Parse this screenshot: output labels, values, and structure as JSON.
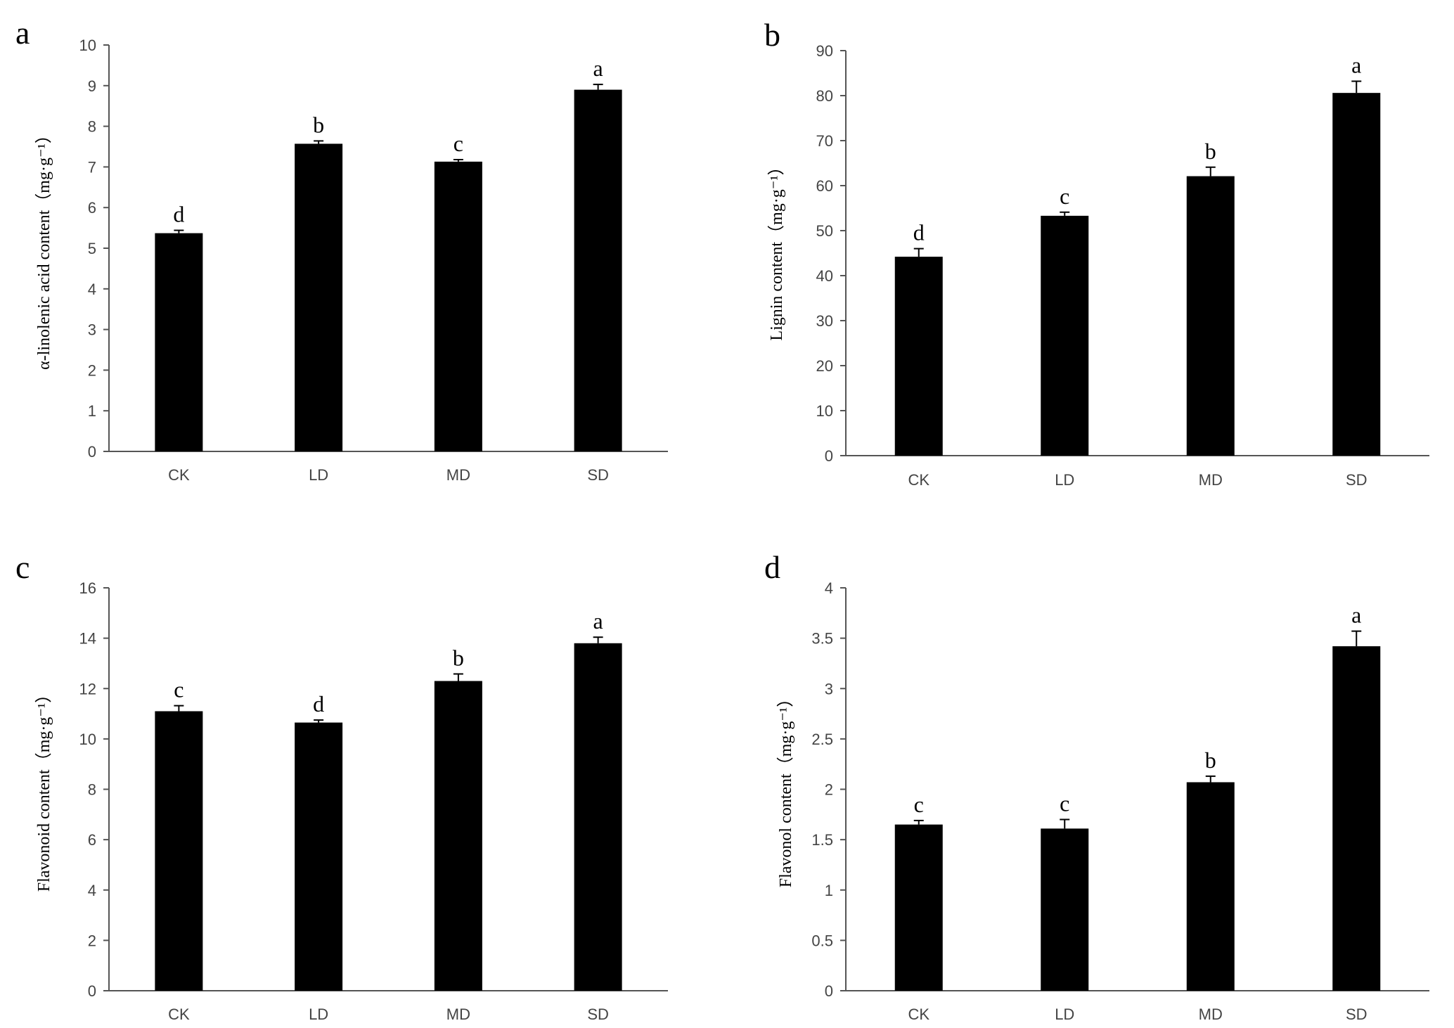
{
  "chart_data": [
    {
      "panel": "a",
      "type": "bar",
      "ylabel": "α-linolenic acid content（mg·g⁻¹）",
      "ylim": [
        0,
        10
      ],
      "yticks": [
        "0",
        "1",
        "2",
        "3",
        "4",
        "5",
        "6",
        "7",
        "8",
        "9",
        "10"
      ],
      "categories": [
        "CK",
        "LD",
        "MD",
        "SD"
      ],
      "values": [
        5.37,
        7.57,
        7.13,
        8.9
      ],
      "errors": [
        0.07,
        0.07,
        0.05,
        0.13
      ],
      "letters": [
        "d",
        "b",
        "c",
        "a"
      ]
    },
    {
      "panel": "b",
      "type": "bar",
      "ylabel": "Lignin content（mg·g⁻¹）",
      "ylim": [
        0,
        90
      ],
      "yticks": [
        "0",
        "10",
        "20",
        "30",
        "40",
        "50",
        "60",
        "70",
        "80",
        "90"
      ],
      "categories": [
        "CK",
        "LD",
        "MD",
        "SD"
      ],
      "values": [
        44.2,
        53.3,
        62.1,
        80.6
      ],
      "errors": [
        1.8,
        0.8,
        2.0,
        2.6
      ],
      "letters": [
        "d",
        "c",
        "b",
        "a"
      ]
    },
    {
      "panel": "c",
      "type": "bar",
      "ylabel": "Flavonoid content（mg·g⁻¹）",
      "ylim": [
        0,
        16
      ],
      "yticks": [
        "0",
        "2",
        "4",
        "6",
        "8",
        "10",
        "12",
        "14",
        "16"
      ],
      "categories": [
        "CK",
        "LD",
        "MD",
        "SD"
      ],
      "values": [
        11.1,
        10.65,
        12.3,
        13.8
      ],
      "errors": [
        0.22,
        0.1,
        0.28,
        0.24
      ],
      "letters": [
        "c",
        "d",
        "b",
        "a"
      ]
    },
    {
      "panel": "d",
      "type": "bar",
      "ylabel": "Flavonol content（mg·g⁻¹）",
      "ylim": [
        0,
        4
      ],
      "yticks": [
        "0",
        "0.5",
        "1",
        "1.5",
        "2",
        "2.5",
        "3",
        "3.5",
        "4"
      ],
      "categories": [
        "CK",
        "LD",
        "MD",
        "SD"
      ],
      "values": [
        1.65,
        1.61,
        2.07,
        3.42
      ],
      "errors": [
        0.04,
        0.09,
        0.06,
        0.15
      ],
      "letters": [
        "c",
        "c",
        "b",
        "a"
      ]
    }
  ]
}
